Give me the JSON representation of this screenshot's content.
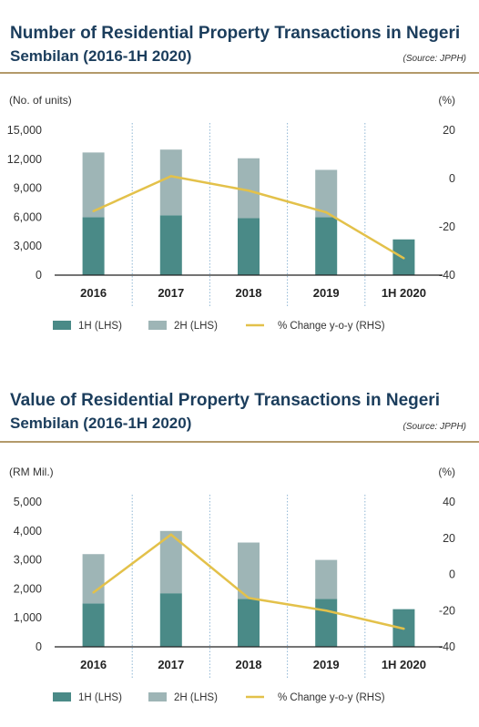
{
  "charts": [
    {
      "title_line1": "Number of Residential Property Transactions in Negeri",
      "title_line2": "Sembilan (2016-1H 2020)",
      "source": "(Source: JPPH)"
    },
    {
      "title_line1": "Value of Residential Property Transactions in Negeri",
      "title_line2": "Sembilan (2016-1H 2020)",
      "source": "(Source: JPPH)"
    }
  ],
  "colors": {
    "h1": "#4a8a87",
    "h2": "#9eb5b6",
    "line": "#e3c14a",
    "title": "#1b3d5c",
    "rule": "#b39a6a"
  },
  "chart_data": [
    {
      "type": "bar",
      "stacked": true,
      "categories": [
        "2016",
        "2017",
        "2018",
        "2019",
        "1H 2020"
      ],
      "series": [
        {
          "name": "1H (LHS)",
          "type": "bar",
          "values": [
            6000,
            6200,
            5900,
            6000,
            3700
          ]
        },
        {
          "name": "2H (LHS)",
          "type": "bar",
          "values": [
            6700,
            6800,
            6200,
            4900,
            null
          ]
        },
        {
          "name": "% Change y-o-y (RHS)",
          "type": "line",
          "axis": "right",
          "values": [
            -13.5,
            1,
            -5,
            -14,
            -33
          ]
        }
      ],
      "ylabel_left": "(No. of units)",
      "ylabel_right": "(%)",
      "ylim_left": [
        0,
        15000
      ],
      "yticks_left": [
        "15,000",
        "12,000",
        "9,000",
        "6,000",
        "3,000",
        "0"
      ],
      "ylim_right": [
        -40,
        20
      ],
      "yticks_right": [
        "20",
        "0",
        "-20",
        "-40"
      ],
      "legend": [
        "1H (LHS)",
        "2H (LHS)",
        "% Change y-o-y (RHS)"
      ]
    },
    {
      "type": "bar",
      "stacked": true,
      "categories": [
        "2016",
        "2017",
        "2018",
        "2019",
        "1H 2020"
      ],
      "series": [
        {
          "name": "1H (LHS)",
          "type": "bar",
          "values": [
            1500,
            1850,
            1650,
            1650,
            1300
          ]
        },
        {
          "name": "2H (LHS)",
          "type": "bar",
          "values": [
            1700,
            2150,
            1950,
            1350,
            null
          ]
        },
        {
          "name": "% Change y-o-y (RHS)",
          "type": "line",
          "axis": "right",
          "values": [
            -10,
            22,
            -13,
            -20,
            -30
          ]
        }
      ],
      "ylabel_left": "(RM Mil.)",
      "ylabel_right": "(%)",
      "ylim_left": [
        0,
        5000
      ],
      "yticks_left": [
        "5,000",
        "4,000",
        "3,000",
        "2,000",
        "1,000",
        "0"
      ],
      "ylim_right": [
        -40,
        40
      ],
      "yticks_right": [
        "40",
        "20",
        "0",
        "-20",
        "-40"
      ],
      "legend": [
        "1H (LHS)",
        "2H (LHS)",
        "% Change y-o-y (RHS)"
      ]
    }
  ]
}
